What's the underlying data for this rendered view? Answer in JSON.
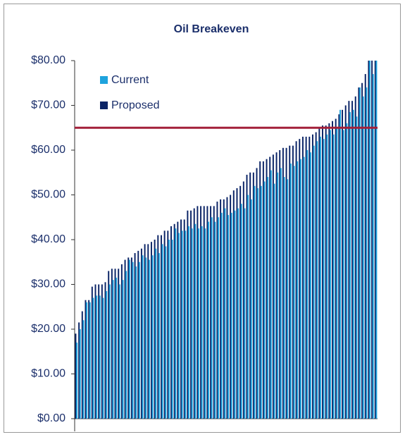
{
  "chart_data": {
    "type": "bar",
    "title": "Oil Breakeven",
    "categories": [
      null,
      null,
      null,
      null,
      null,
      null,
      null,
      null,
      null,
      null,
      null,
      null,
      null,
      null,
      null,
      null,
      null,
      null,
      null,
      null,
      null,
      null,
      null,
      null,
      null,
      null,
      null,
      null,
      null,
      null,
      null,
      null,
      null,
      null,
      null,
      null,
      null,
      null,
      null,
      null,
      null,
      null,
      null,
      null,
      null,
      null,
      null,
      null,
      null,
      null,
      null,
      null,
      null,
      null,
      null,
      null,
      null,
      null,
      null,
      null,
      null,
      null,
      null,
      null,
      null,
      null,
      null,
      null,
      null,
      null,
      null,
      null,
      null,
      null,
      null,
      null,
      null,
      null,
      null,
      null,
      null,
      null,
      null,
      null,
      null,
      null,
      null,
      null,
      null,
      null,
      null,
      null
    ],
    "series": [
      {
        "name": "Current",
        "color": "#1ea3dd",
        "values": [
          17,
          20,
          22,
          26,
          26,
          27,
          27.5,
          27.5,
          27,
          28.5,
          30,
          31,
          31.5,
          30,
          31,
          33,
          35.5,
          35,
          34,
          35,
          36.5,
          36,
          35.5,
          36.5,
          38,
          37,
          39,
          38.5,
          40,
          40,
          42.5,
          41.5,
          42,
          42,
          43,
          42.5,
          43.5,
          42.5,
          43,
          42.5,
          44,
          45,
          44,
          45,
          46,
          47,
          45.5,
          46,
          46.5,
          47,
          48,
          47,
          50,
          49,
          52,
          51.5,
          52,
          53,
          54,
          55.5,
          52.5,
          55,
          56,
          54,
          53.5,
          57,
          56.5,
          57.5,
          58,
          58.5,
          60,
          59.5,
          61,
          62,
          63,
          62.5,
          63.5,
          64.5,
          63.5,
          65,
          69,
          64.5,
          66,
          68.5,
          69,
          67.5,
          74,
          72,
          74,
          80,
          77,
          80
        ]
      },
      {
        "name": "Proposed",
        "color": "#0b2466",
        "values": [
          19,
          21.5,
          24,
          26.5,
          26.5,
          29.5,
          30,
          30,
          30,
          30.5,
          33,
          33.5,
          33.5,
          33.5,
          34.5,
          35.5,
          36,
          36,
          37,
          37.5,
          38,
          39,
          39,
          39.5,
          40,
          41,
          41,
          42,
          42,
          43,
          43.5,
          44,
          44.5,
          44.5,
          46.5,
          46.5,
          47,
          47.5,
          47.5,
          47.5,
          47.5,
          47.5,
          47.5,
          48.5,
          49,
          49,
          49.5,
          50,
          51,
          51.5,
          52,
          53,
          54.5,
          55,
          55,
          56,
          57.5,
          57.5,
          58,
          58.5,
          59,
          59.5,
          60,
          60.5,
          60.5,
          61,
          61,
          62,
          62.5,
          63,
          63,
          63,
          63.5,
          64,
          65,
          65.5,
          65.5,
          66,
          66.5,
          67,
          68,
          69,
          70,
          71,
          71,
          72,
          74,
          75,
          77,
          80,
          80,
          80
        ]
      }
    ],
    "reference_line": {
      "value": 65,
      "color": "#a3203a"
    },
    "ylim": [
      0,
      80
    ],
    "yticks": [
      {
        "value": 0,
        "label": "$0.00"
      },
      {
        "value": 10,
        "label": "$10.00"
      },
      {
        "value": 20,
        "label": "$20.00"
      },
      {
        "value": 30,
        "label": "$30.00"
      },
      {
        "value": 40,
        "label": "$40.00"
      },
      {
        "value": 50,
        "label": "$50.00"
      },
      {
        "value": 60,
        "label": "$60.00"
      },
      {
        "value": 70,
        "label": "$70.00"
      },
      {
        "value": 80,
        "label": "$80.00"
      }
    ],
    "legend": "upper left"
  }
}
